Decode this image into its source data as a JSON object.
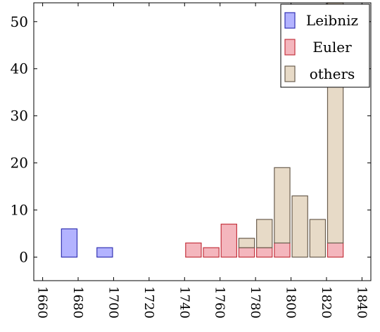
{
  "chart_data": {
    "type": "bar",
    "stacked": true,
    "x": [
      1665,
      1675,
      1685,
      1695,
      1705,
      1715,
      1725,
      1735,
      1745,
      1755,
      1765,
      1775,
      1785,
      1795,
      1805,
      1815,
      1825
    ],
    "series": [
      {
        "name": "Leibniz",
        "color": "#b3b3ff",
        "stroke": "#3333b3",
        "values": [
          0,
          6,
          0,
          2,
          0,
          0,
          0,
          0,
          0,
          0,
          0,
          0,
          0,
          0,
          0,
          0,
          0
        ]
      },
      {
        "name": "Euler",
        "color": "#f4b6bd",
        "stroke": "#c4343f",
        "values": [
          0,
          0,
          0,
          0,
          0,
          0,
          0,
          0,
          3,
          2,
          7,
          2,
          2,
          3,
          0,
          0,
          3
        ]
      },
      {
        "name": "others",
        "color": "#e7dac7",
        "stroke": "#6b5e4f",
        "values": [
          0,
          0,
          0,
          0,
          0,
          0,
          0,
          0,
          0,
          0,
          0,
          2,
          6,
          16,
          13,
          8,
          51
        ]
      }
    ],
    "xlim": [
      1655,
      1845
    ],
    "ylim": [
      -5,
      54
    ],
    "xticks": [
      1660,
      1680,
      1700,
      1720,
      1740,
      1760,
      1780,
      1800,
      1820,
      1840
    ],
    "yticks": [
      0,
      10,
      20,
      30,
      40,
      50
    ],
    "xlabel": "",
    "ylabel": "",
    "title": "",
    "legend": "top-right",
    "grid": false
  }
}
